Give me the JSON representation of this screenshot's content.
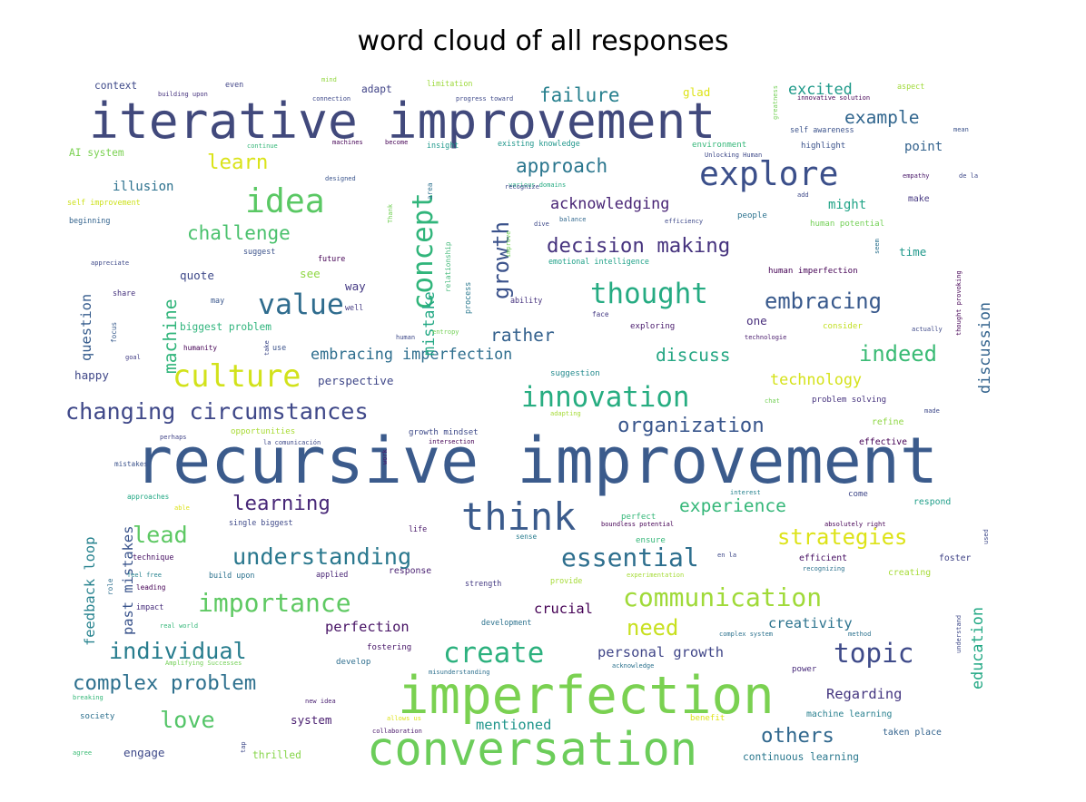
{
  "chart_data": {
    "type": "wordcloud",
    "title": "word cloud of all responses",
    "words": [
      {
        "text": "recursive improvement",
        "weight": 100,
        "color": "#3b5b8c"
      },
      {
        "text": "iterative improvement",
        "weight": 78,
        "color": "#41497c"
      },
      {
        "text": "imperfection",
        "weight": 82,
        "color": "#7ad151"
      },
      {
        "text": "conversation",
        "weight": 72,
        "color": "#6ccd5a"
      },
      {
        "text": "think",
        "weight": 60,
        "color": "#3b5b8c"
      },
      {
        "text": "explore",
        "weight": 52,
        "color": "#3b4f8a"
      },
      {
        "text": "idea",
        "weight": 52,
        "color": "#5ac864"
      },
      {
        "text": "culture",
        "weight": 48,
        "color": "#d2e21b"
      },
      {
        "text": "value",
        "weight": 45,
        "color": "#2f6c8e"
      },
      {
        "text": "concept",
        "weight": 44,
        "color": "#31b57b"
      },
      {
        "text": "innovation",
        "weight": 44,
        "color": "#27ad81"
      },
      {
        "text": "thought",
        "weight": 44,
        "color": "#25ab82"
      },
      {
        "text": "create",
        "weight": 44,
        "color": "#2cb17e"
      },
      {
        "text": "topic",
        "weight": 42,
        "color": "#3e4a89"
      },
      {
        "text": "essential",
        "weight": 40,
        "color": "#2e6f8e"
      },
      {
        "text": "communication",
        "weight": 40,
        "color": "#a0da39"
      },
      {
        "text": "importance",
        "weight": 40,
        "color": "#5ec962"
      },
      {
        "text": "changing circumstances",
        "weight": 36,
        "color": "#3f4889"
      },
      {
        "text": "understanding",
        "weight": 36,
        "color": "#2a788e"
      },
      {
        "text": "individual",
        "weight": 36,
        "color": "#287d8e"
      },
      {
        "text": "embracing",
        "weight": 34,
        "color": "#38598c"
      },
      {
        "text": "indeed",
        "weight": 34,
        "color": "#3bbb75"
      },
      {
        "text": "decision making",
        "weight": 32,
        "color": "#46337e"
      },
      {
        "text": "organization",
        "weight": 32,
        "color": "#39568c"
      },
      {
        "text": "complex problem",
        "weight": 32,
        "color": "#2d708e"
      },
      {
        "text": "learning",
        "weight": 32,
        "color": "#482878"
      },
      {
        "text": "lead",
        "weight": 36,
        "color": "#5dc863"
      },
      {
        "text": "love",
        "weight": 36,
        "color": "#54c568"
      },
      {
        "text": "need",
        "weight": 34,
        "color": "#c8e020"
      },
      {
        "text": "growth",
        "weight": 34,
        "color": "#3b528b"
      },
      {
        "text": "strategies",
        "weight": 34,
        "color": "#dde318"
      },
      {
        "text": "others",
        "weight": 32,
        "color": "#31688e"
      },
      {
        "text": "learn",
        "weight": 32,
        "color": "#dae319"
      },
      {
        "text": "approach",
        "weight": 30,
        "color": "#2a768e"
      },
      {
        "text": "failure",
        "weight": 30,
        "color": "#27808e"
      },
      {
        "text": "challenge",
        "weight": 30,
        "color": "#4ac16d"
      },
      {
        "text": "example",
        "weight": 28,
        "color": "#31668e"
      },
      {
        "text": "experience",
        "weight": 28,
        "color": "#35b779"
      },
      {
        "text": "discuss",
        "weight": 28,
        "color": "#26a784"
      },
      {
        "text": "machine",
        "weight": 28,
        "color": "#31b57b"
      },
      {
        "text": "rather",
        "weight": 28,
        "color": "#34618d"
      },
      {
        "text": "excited",
        "weight": 24,
        "color": "#1f9a8a"
      },
      {
        "text": "acknowledging",
        "weight": 24,
        "color": "#482475"
      },
      {
        "text": "embracing imperfection",
        "weight": 24,
        "color": "#2e6e8e"
      },
      {
        "text": "technology",
        "weight": 24,
        "color": "#d5e21a"
      },
      {
        "text": "mistake",
        "weight": 24,
        "color": "#22a884"
      },
      {
        "text": "education",
        "weight": 24,
        "color": "#22a884"
      },
      {
        "text": "discussion",
        "weight": 24,
        "color": "#33638d"
      },
      {
        "text": "personal growth",
        "weight": 22,
        "color": "#404688"
      },
      {
        "text": "creativity",
        "weight": 22,
        "color": "#2c738e"
      },
      {
        "text": "perfection",
        "weight": 22,
        "color": "#471365"
      },
      {
        "text": "Regarding",
        "weight": 22,
        "color": "#453781"
      },
      {
        "text": "crucial",
        "weight": 22,
        "color": "#440154"
      },
      {
        "text": "feedback loop",
        "weight": 22,
        "color": "#26828e"
      },
      {
        "text": "past mistakes",
        "weight": 22,
        "color": "#3a548c"
      },
      {
        "text": "mentioned",
        "weight": 22,
        "color": "#1f958b"
      },
      {
        "text": "illusion",
        "weight": 20,
        "color": "#2c718e"
      },
      {
        "text": "question",
        "weight": 22,
        "color": "#365c8d"
      },
      {
        "text": "might",
        "weight": 20,
        "color": "#20a386"
      },
      {
        "text": "point",
        "weight": 20,
        "color": "#33628d"
      },
      {
        "text": "time",
        "weight": 18,
        "color": "#1f988b"
      },
      {
        "text": "quote",
        "weight": 18,
        "color": "#3e4989"
      },
      {
        "text": "see",
        "weight": 18,
        "color": "#8fd744"
      },
      {
        "text": "way",
        "weight": 18,
        "color": "#443983"
      },
      {
        "text": "perspective",
        "weight": 18,
        "color": "#3f4788"
      },
      {
        "text": "happy",
        "weight": 18,
        "color": "#3f4788"
      },
      {
        "text": "one",
        "weight": 18,
        "color": "#472d7b"
      },
      {
        "text": "system",
        "weight": 18,
        "color": "#481d6f"
      },
      {
        "text": "engage",
        "weight": 18,
        "color": "#3e4989"
      },
      {
        "text": "thrilled",
        "weight": 16,
        "color": "#86d549"
      },
      {
        "text": "continuous learning",
        "weight": 16,
        "color": "#2a788e"
      },
      {
        "text": "AI system",
        "weight": 16,
        "color": "#7ad151"
      },
      {
        "text": "context",
        "weight": 16,
        "color": "#3e4989"
      },
      {
        "text": "glad",
        "weight": 18,
        "color": "#dde318"
      },
      {
        "text": "adapt",
        "weight": 16,
        "color": "#414487"
      },
      {
        "text": "biggest problem",
        "weight": 16,
        "color": "#2fb47c"
      },
      {
        "text": "make",
        "weight": 14,
        "color": "#453781"
      },
      {
        "text": "refine",
        "weight": 14,
        "color": "#8fd744"
      },
      {
        "text": "effective",
        "weight": 14,
        "color": "#440154"
      },
      {
        "text": "respond",
        "weight": 14,
        "color": "#1f9e89"
      },
      {
        "text": "machine learning",
        "weight": 14,
        "color": "#277f8e"
      },
      {
        "text": "taken place",
        "weight": 14,
        "color": "#33638d"
      },
      {
        "text": "efficient",
        "weight": 14,
        "color": "#471063"
      },
      {
        "text": "foster",
        "weight": 14,
        "color": "#414487"
      },
      {
        "text": "creating",
        "weight": 14,
        "color": "#a5db36"
      },
      {
        "text": "response",
        "weight": 14,
        "color": "#481f70"
      },
      {
        "text": "perfect",
        "weight": 13,
        "color": "#35b779"
      },
      {
        "text": "ensure",
        "weight": 13,
        "color": "#35b779"
      },
      {
        "text": "come",
        "weight": 13,
        "color": "#3f4788"
      },
      {
        "text": "power",
        "weight": 13,
        "color": "#472a7a"
      },
      {
        "text": "develop",
        "weight": 13,
        "color": "#2e6e8e"
      },
      {
        "text": "fostering",
        "weight": 13,
        "color": "#481769"
      },
      {
        "text": "society",
        "weight": 13,
        "color": "#2d708e"
      },
      {
        "text": "benefit",
        "weight": 13,
        "color": "#dde318"
      },
      {
        "text": "opportunities",
        "weight": 13,
        "color": "#a8db34"
      },
      {
        "text": "growth mindset",
        "weight": 13,
        "color": "#3e4a89"
      },
      {
        "text": "suggestion",
        "weight": 13,
        "color": "#238a8d"
      },
      {
        "text": "exploring",
        "weight": 13,
        "color": "#481a6c"
      },
      {
        "text": "consider",
        "weight": 13,
        "color": "#c2df23"
      },
      {
        "text": "human imperfection",
        "weight": 13,
        "color": "#440154"
      },
      {
        "text": "problem solving",
        "weight": 13,
        "color": "#46337e"
      },
      {
        "text": "human potential",
        "weight": 13,
        "color": "#73d056"
      },
      {
        "text": "people",
        "weight": 13,
        "color": "#2c728e"
      },
      {
        "text": "environment",
        "weight": 13,
        "color": "#35b779"
      },
      {
        "text": "highlight",
        "weight": 13,
        "color": "#3b528b"
      },
      {
        "text": "self awareness",
        "weight": 12,
        "color": "#3b528b"
      },
      {
        "text": "existing knowledge",
        "weight": 12,
        "color": "#1f968b"
      },
      {
        "text": "insight",
        "weight": 12,
        "color": "#1f988b"
      },
      {
        "text": "limitation",
        "weight": 12,
        "color": "#9dd93b"
      },
      {
        "text": "aspect",
        "weight": 12,
        "color": "#a0da39"
      },
      {
        "text": "even",
        "weight": 12,
        "color": "#414487"
      },
      {
        "text": "self improvement",
        "weight": 12,
        "color": "#cde11d"
      },
      {
        "text": "beginning",
        "weight": 12,
        "color": "#33638d"
      },
      {
        "text": "share",
        "weight": 12,
        "color": "#46337e"
      },
      {
        "text": "may",
        "weight": 12,
        "color": "#39568c"
      },
      {
        "text": "future",
        "weight": 12,
        "color": "#440154"
      },
      {
        "text": "well",
        "weight": 12,
        "color": "#443a83"
      },
      {
        "text": "suggest",
        "weight": 12,
        "color": "#3b528b"
      },
      {
        "text": "emotional intelligence",
        "weight": 12,
        "color": "#1fa188"
      },
      {
        "text": "ability",
        "weight": 12,
        "color": "#46327e"
      },
      {
        "text": "process",
        "weight": 12,
        "color": "#2a788e"
      },
      {
        "text": "relationship",
        "weight": 11,
        "color": "#45b97a"
      },
      {
        "text": "area",
        "weight": 11,
        "color": "#2d708e"
      },
      {
        "text": "use",
        "weight": 12,
        "color": "#3b528b"
      },
      {
        "text": "focus",
        "weight": 11,
        "color": "#375a8c"
      },
      {
        "text": "role",
        "weight": 11,
        "color": "#2e6e8e"
      },
      {
        "text": "technique",
        "weight": 12,
        "color": "#471063"
      },
      {
        "text": "build upon",
        "weight": 12,
        "color": "#2c728e"
      },
      {
        "text": "applied",
        "weight": 12,
        "color": "#482475"
      },
      {
        "text": "leading",
        "weight": 11,
        "color": "#440154"
      },
      {
        "text": "impact",
        "weight": 12,
        "color": "#472d7b"
      },
      {
        "text": "strength",
        "weight": 12,
        "color": "#443a83"
      },
      {
        "text": "provide",
        "weight": 12,
        "color": "#a5db36"
      },
      {
        "text": "development",
        "weight": 12,
        "color": "#2c728e"
      },
      {
        "text": "life",
        "weight": 12,
        "color": "#481769"
      },
      {
        "text": "sense",
        "weight": 11,
        "color": "#287c8e"
      },
      {
        "text": "single biggest",
        "weight": 12,
        "color": "#3e4989"
      },
      {
        "text": "approaches",
        "weight": 11,
        "color": "#22a884"
      },
      {
        "text": "mistakes",
        "weight": 11,
        "color": "#3b528b"
      },
      {
        "text": "humanity",
        "weight": 11,
        "color": "#440154"
      },
      {
        "text": "face",
        "weight": 11,
        "color": "#443983"
      },
      {
        "text": "technologie",
        "weight": 10,
        "color": "#481a6c"
      },
      {
        "text": "interest",
        "weight": 10,
        "color": "#26828e"
      },
      {
        "text": "work",
        "weight": 10,
        "color": "#481769"
      },
      {
        "text": "real world",
        "weight": 10,
        "color": "#35b779"
      },
      {
        "text": "feel free",
        "weight": 10,
        "color": "#26828e"
      },
      {
        "text": "new idea",
        "weight": 10,
        "color": "#481f70"
      },
      {
        "text": "misunderstanding",
        "weight": 10,
        "color": "#2d708e"
      },
      {
        "text": "agree",
        "weight": 10,
        "color": "#3bbb75"
      },
      {
        "text": "perhaps",
        "weight": 10,
        "color": "#414487"
      },
      {
        "text": "goal",
        "weight": 9,
        "color": "#433e85"
      },
      {
        "text": "building upon",
        "weight": 10,
        "color": "#46337e"
      },
      {
        "text": "continue",
        "weight": 9,
        "color": "#35b779"
      },
      {
        "text": "designed",
        "weight": 9,
        "color": "#3a548c"
      },
      {
        "text": "mind",
        "weight": 9,
        "color": "#93d741"
      },
      {
        "text": "various domains",
        "weight": 10,
        "color": "#25ab82"
      },
      {
        "text": "balance",
        "weight": 9,
        "color": "#31688e"
      },
      {
        "text": "mean",
        "weight": 9,
        "color": "#3b528b"
      },
      {
        "text": "empathy",
        "weight": 9,
        "color": "#481769"
      },
      {
        "text": "progress toward",
        "weight": 8,
        "color": "#3e4989"
      },
      {
        "text": "connection",
        "weight": 8,
        "color": "#3e4989"
      },
      {
        "text": "machines",
        "weight": 8,
        "color": "#440154"
      },
      {
        "text": "become",
        "weight": 8,
        "color": "#440154"
      },
      {
        "text": "innovative solution",
        "weight": 8,
        "color": "#440154"
      },
      {
        "text": "efficiency",
        "weight": 8,
        "color": "#3e4989"
      },
      {
        "text": "Amplifying Successes",
        "weight": 8,
        "color": "#73d056"
      },
      {
        "text": "acknowledge",
        "weight": 8,
        "color": "#2c728e"
      },
      {
        "text": "collaboration",
        "weight": 8,
        "color": "#481769"
      },
      {
        "text": "experimentation",
        "weight": 8,
        "color": "#a5db36"
      },
      {
        "text": "adapting",
        "weight": 8,
        "color": "#a5db36"
      },
      {
        "text": "intersection",
        "weight": 8,
        "color": "#440154"
      },
      {
        "text": "la comunicación",
        "weight": 8,
        "color": "#3e4989"
      },
      {
        "text": "boundless potential",
        "weight": 8,
        "color": "#440154"
      },
      {
        "text": "absolutely right",
        "weight": 8,
        "color": "#440154"
      },
      {
        "text": "recognizing",
        "weight": 8,
        "color": "#2c728e"
      },
      {
        "text": "complex system",
        "weight": 7,
        "color": "#2c728e"
      },
      {
        "text": "method",
        "weight": 7,
        "color": "#2c728e"
      },
      {
        "text": "allows us",
        "weight": 8,
        "color": "#dde318"
      },
      {
        "text": "breaking",
        "weight": 7,
        "color": "#35b779"
      },
      {
        "text": "able",
        "weight": 9,
        "color": "#dde318"
      },
      {
        "text": "appreciate",
        "weight": 7,
        "color": "#3e4989"
      },
      {
        "text": "Unlocking Human",
        "weight": 7,
        "color": "#3e4989"
      },
      {
        "text": "chat",
        "weight": 7,
        "color": "#73d056"
      },
      {
        "text": "made",
        "weight": 7,
        "color": "#3e4989"
      },
      {
        "text": "actually",
        "weight": 8,
        "color": "#3e4989"
      },
      {
        "text": "entropy",
        "weight": 7,
        "color": "#73d056"
      },
      {
        "text": "human",
        "weight": 7,
        "color": "#3e4989"
      },
      {
        "text": "add",
        "weight": 7,
        "color": "#3e4989"
      },
      {
        "text": "de la",
        "weight": 7,
        "color": "#3e4989"
      },
      {
        "text": "en la",
        "weight": 7,
        "color": "#3e4989"
      },
      {
        "text": "recognize",
        "weight": 7,
        "color": "#3e4989"
      },
      {
        "text": "dive",
        "weight": 7,
        "color": "#3e4989"
      },
      {
        "text": "greatness",
        "weight": 7,
        "color": "#73d056"
      },
      {
        "text": "improve",
        "weight": 9,
        "color": "#73d056"
      },
      {
        "text": "Thank",
        "weight": 7,
        "color": "#73d056"
      },
      {
        "text": "seem",
        "weight": 7,
        "color": "#2c728e"
      },
      {
        "text": "take",
        "weight": 7,
        "color": "#3e4989"
      },
      {
        "text": "tap",
        "weight": 7,
        "color": "#3e4989"
      },
      {
        "text": "understand",
        "weight": 8,
        "color": "#3e4989"
      },
      {
        "text": "used",
        "weight": 7,
        "color": "#3e4989"
      },
      {
        "text": "thought provoking",
        "weight": 9,
        "color": "#440154"
      }
    ]
  }
}
